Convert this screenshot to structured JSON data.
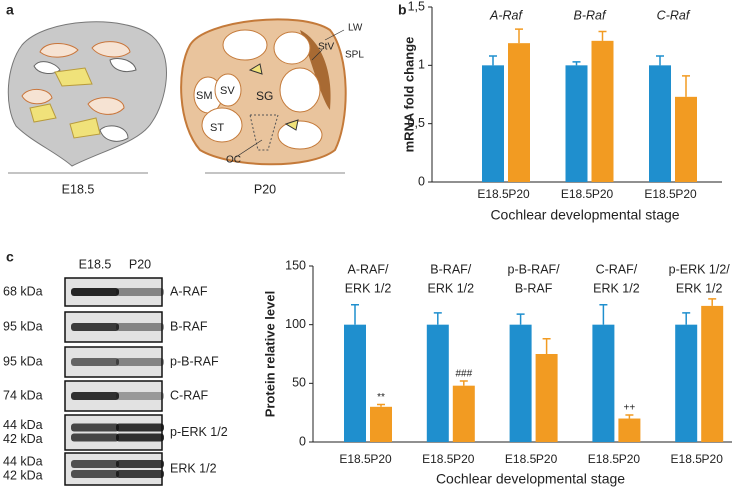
{
  "panel_labels": [
    "a",
    "b",
    "c"
  ],
  "panel_a": {
    "diagrams": [
      {
        "label": "E18.5"
      },
      {
        "label": "P20",
        "structures": [
          "LW",
          "StV",
          "SPL",
          "SM",
          "SV",
          "SG",
          "ST",
          "OC"
        ]
      }
    ]
  },
  "chart_data": [
    {
      "type": "bar",
      "ylabel": "mRNA fold change",
      "xlabel": "Cochlear developmental stage",
      "categories": [
        "A-Raf",
        "B-Raf",
        "C-Raf"
      ],
      "series": [
        {
          "name": "E18.5",
          "color": "#1f8fce",
          "values": [
            1.0,
            1.0,
            1.0
          ],
          "errors": [
            0.08,
            0.03,
            0.08
          ]
        },
        {
          "name": "P20",
          "color": "#f29b22",
          "values": [
            1.19,
            1.21,
            0.73
          ],
          "errors": [
            0.12,
            0.08,
            0.18
          ]
        }
      ],
      "ylim": [
        0,
        1.5
      ],
      "yticks": [
        0,
        {
          "value": 0.5,
          "label": "0,5"
        },
        1,
        {
          "value": 1.5,
          "label": "1,5"
        }
      ]
    },
    {
      "type": "bar",
      "ylabel": "Protein relative level",
      "xlabel": "Cochlear developmental stage",
      "categories": [
        [
          "A-RAF/",
          "ERK 1/2"
        ],
        [
          "B-RAF/",
          "ERK 1/2"
        ],
        [
          "p-B-RAF/",
          "B-RAF"
        ],
        [
          "C-RAF/",
          "ERK 1/2"
        ],
        [
          "p-ERK 1/2/",
          "ERK 1/2"
        ]
      ],
      "series": [
        {
          "name": "E18.5",
          "color": "#1f8fce",
          "values": [
            100,
            100,
            100,
            100,
            100
          ],
          "errors": [
            17,
            10,
            9,
            17,
            10
          ]
        },
        {
          "name": "P20",
          "color": "#f29b22",
          "values": [
            30,
            48,
            75,
            20,
            116
          ],
          "errors": [
            2,
            4,
            13,
            3,
            6
          ],
          "annotations": [
            "**",
            "###",
            null,
            "++",
            null
          ]
        }
      ],
      "ylim": [
        0,
        150
      ],
      "yticks": [
        0,
        50,
        100,
        150
      ]
    }
  ],
  "blot": {
    "conditions": [
      "E18.5",
      "P20"
    ],
    "rows": [
      {
        "kda": [
          "68 kDa"
        ],
        "protein": "A-RAF"
      },
      {
        "kda": [
          "95 kDa"
        ],
        "protein": "B-RAF"
      },
      {
        "kda": [
          "95 kDa"
        ],
        "protein": "p-B-RAF"
      },
      {
        "kda": [
          "74 kDa"
        ],
        "protein": "C-RAF"
      },
      {
        "kda": [
          "44 kDa",
          "42 kDa"
        ],
        "protein": "p-ERK 1/2"
      },
      {
        "kda": [
          "44 kDa",
          "42 kDa"
        ],
        "protein": "ERK 1/2"
      }
    ]
  }
}
